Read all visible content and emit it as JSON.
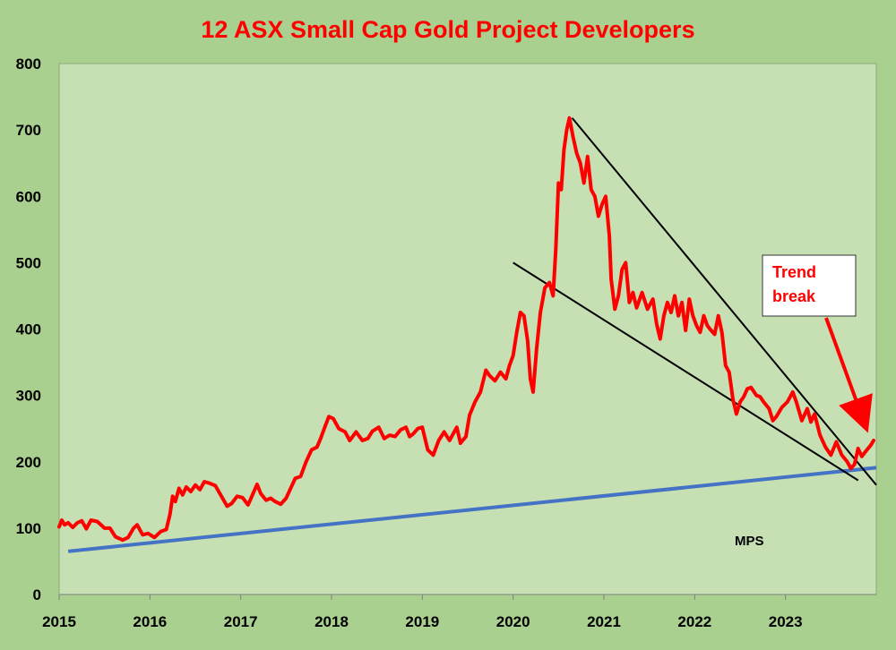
{
  "chart_data": {
    "type": "line",
    "title": "12 ASX Small Cap Gold Project Developers",
    "xlabel": "",
    "ylabel": "",
    "xlim": [
      2015.0,
      2024.0
    ],
    "ylim": [
      0,
      800
    ],
    "x_ticks": [
      "2015",
      "2016",
      "2017",
      "2018",
      "2019",
      "2020",
      "2021",
      "2022",
      "2023"
    ],
    "y_ticks": [
      "0",
      "100",
      "200",
      "300",
      "400",
      "500",
      "600",
      "700",
      "800"
    ],
    "grid": false,
    "legend": "none",
    "colors": {
      "outer_bg": "#a9d08e",
      "plot_bg": "#c6e0b4",
      "index_line": "#ff0000",
      "support_line": "#4472c4",
      "trendlines": "#000000",
      "title": "#ff0000",
      "annotation_text": "#ff0000"
    },
    "series": [
      {
        "color": "#ff0000",
        "points": [
          [
            2015.0,
            102
          ],
          [
            2015.03,
            112
          ],
          [
            2015.06,
            105
          ],
          [
            2015.1,
            108
          ],
          [
            2015.15,
            101
          ],
          [
            2015.2,
            108
          ],
          [
            2015.25,
            111
          ],
          [
            2015.3,
            99
          ],
          [
            2015.35,
            112
          ],
          [
            2015.42,
            110
          ],
          [
            2015.5,
            100
          ],
          [
            2015.56,
            100
          ],
          [
            2015.62,
            87
          ],
          [
            2015.7,
            82
          ],
          [
            2015.76,
            86
          ],
          [
            2015.82,
            100
          ],
          [
            2015.86,
            105
          ],
          [
            2015.92,
            90
          ],
          [
            2015.98,
            92
          ],
          [
            2016.05,
            86
          ],
          [
            2016.12,
            95
          ],
          [
            2016.18,
            98
          ],
          [
            2016.22,
            120
          ],
          [
            2016.25,
            148
          ],
          [
            2016.28,
            140
          ],
          [
            2016.32,
            160
          ],
          [
            2016.36,
            150
          ],
          [
            2016.4,
            162
          ],
          [
            2016.45,
            155
          ],
          [
            2016.5,
            165
          ],
          [
            2016.55,
            158
          ],
          [
            2016.6,
            170
          ],
          [
            2016.65,
            168
          ],
          [
            2016.72,
            164
          ],
          [
            2016.8,
            145
          ],
          [
            2016.85,
            133
          ],
          [
            2016.9,
            137
          ],
          [
            2016.96,
            148
          ],
          [
            2017.02,
            146
          ],
          [
            2017.08,
            135
          ],
          [
            2017.12,
            147
          ],
          [
            2017.18,
            166
          ],
          [
            2017.22,
            152
          ],
          [
            2017.28,
            142
          ],
          [
            2017.33,
            145
          ],
          [
            2017.38,
            140
          ],
          [
            2017.44,
            136
          ],
          [
            2017.5,
            145
          ],
          [
            2017.55,
            160
          ],
          [
            2017.6,
            175
          ],
          [
            2017.66,
            178
          ],
          [
            2017.72,
            200
          ],
          [
            2017.78,
            218
          ],
          [
            2017.84,
            222
          ],
          [
            2017.88,
            235
          ],
          [
            2017.92,
            250
          ],
          [
            2017.97,
            268
          ],
          [
            2018.02,
            265
          ],
          [
            2018.08,
            250
          ],
          [
            2018.15,
            245
          ],
          [
            2018.2,
            232
          ],
          [
            2018.27,
            245
          ],
          [
            2018.34,
            232
          ],
          [
            2018.4,
            235
          ],
          [
            2018.45,
            246
          ],
          [
            2018.52,
            252
          ],
          [
            2018.58,
            235
          ],
          [
            2018.64,
            240
          ],
          [
            2018.7,
            238
          ],
          [
            2018.76,
            248
          ],
          [
            2018.82,
            252
          ],
          [
            2018.86,
            238
          ],
          [
            2018.9,
            242
          ],
          [
            2018.95,
            250
          ],
          [
            2019.0,
            252
          ],
          [
            2019.06,
            218
          ],
          [
            2019.12,
            210
          ],
          [
            2019.18,
            232
          ],
          [
            2019.24,
            245
          ],
          [
            2019.3,
            232
          ],
          [
            2019.38,
            252
          ],
          [
            2019.42,
            228
          ],
          [
            2019.48,
            238
          ],
          [
            2019.52,
            270
          ],
          [
            2019.58,
            290
          ],
          [
            2019.64,
            305
          ],
          [
            2019.7,
            338
          ],
          [
            2019.74,
            330
          ],
          [
            2019.8,
            322
          ],
          [
            2019.86,
            335
          ],
          [
            2019.92,
            325
          ],
          [
            2019.96,
            345
          ],
          [
            2020.0,
            360
          ],
          [
            2020.04,
            395
          ],
          [
            2020.08,
            425
          ],
          [
            2020.12,
            420
          ],
          [
            2020.16,
            382
          ],
          [
            2020.19,
            325
          ],
          [
            2020.22,
            305
          ],
          [
            2020.26,
            372
          ],
          [
            2020.3,
            425
          ],
          [
            2020.35,
            462
          ],
          [
            2020.4,
            470
          ],
          [
            2020.44,
            450
          ],
          [
            2020.47,
            520
          ],
          [
            2020.5,
            620
          ],
          [
            2020.53,
            610
          ],
          [
            2020.56,
            670
          ],
          [
            2020.59,
            700
          ],
          [
            2020.62,
            718
          ],
          [
            2020.66,
            690
          ],
          [
            2020.7,
            665
          ],
          [
            2020.74,
            650
          ],
          [
            2020.78,
            620
          ],
          [
            2020.82,
            660
          ],
          [
            2020.86,
            610
          ],
          [
            2020.9,
            600
          ],
          [
            2020.94,
            570
          ],
          [
            2020.98,
            588
          ],
          [
            2021.02,
            600
          ],
          [
            2021.06,
            540
          ],
          [
            2021.08,
            475
          ],
          [
            2021.12,
            430
          ],
          [
            2021.16,
            450
          ],
          [
            2021.2,
            490
          ],
          [
            2021.24,
            500
          ],
          [
            2021.28,
            440
          ],
          [
            2021.32,
            455
          ],
          [
            2021.36,
            432
          ],
          [
            2021.42,
            455
          ],
          [
            2021.48,
            430
          ],
          [
            2021.54,
            445
          ],
          [
            2021.58,
            408
          ],
          [
            2021.62,
            385
          ],
          [
            2021.66,
            420
          ],
          [
            2021.7,
            440
          ],
          [
            2021.74,
            425
          ],
          [
            2021.78,
            450
          ],
          [
            2021.82,
            420
          ],
          [
            2021.86,
            440
          ],
          [
            2021.9,
            398
          ],
          [
            2021.94,
            445
          ],
          [
            2021.98,
            420
          ],
          [
            2022.02,
            405
          ],
          [
            2022.06,
            395
          ],
          [
            2022.1,
            420
          ],
          [
            2022.14,
            405
          ],
          [
            2022.18,
            398
          ],
          [
            2022.22,
            392
          ],
          [
            2022.26,
            420
          ],
          [
            2022.3,
            395
          ],
          [
            2022.34,
            345
          ],
          [
            2022.38,
            335
          ],
          [
            2022.42,
            295
          ],
          [
            2022.46,
            272
          ],
          [
            2022.5,
            290
          ],
          [
            2022.54,
            298
          ],
          [
            2022.58,
            310
          ],
          [
            2022.62,
            312
          ],
          [
            2022.68,
            300
          ],
          [
            2022.72,
            298
          ],
          [
            2022.76,
            290
          ],
          [
            2022.82,
            280
          ],
          [
            2022.86,
            262
          ],
          [
            2022.9,
            268
          ],
          [
            2022.96,
            282
          ],
          [
            2023.02,
            290
          ],
          [
            2023.08,
            305
          ],
          [
            2023.12,
            290
          ],
          [
            2023.18,
            262
          ],
          [
            2023.24,
            280
          ],
          [
            2023.28,
            260
          ],
          [
            2023.32,
            272
          ],
          [
            2023.38,
            240
          ],
          [
            2023.44,
            222
          ],
          [
            2023.5,
            210
          ],
          [
            2023.56,
            230
          ],
          [
            2023.62,
            210
          ],
          [
            2023.68,
            200
          ],
          [
            2023.72,
            190
          ],
          [
            2023.76,
            196
          ],
          [
            2023.8,
            220
          ],
          [
            2023.84,
            208
          ],
          [
            2023.88,
            215
          ],
          [
            2023.94,
            225
          ],
          [
            2023.97,
            232
          ]
        ]
      }
    ],
    "trendlines": [
      {
        "color": "#4472c4",
        "x": [
          2015.1,
          2024.0
        ],
        "y": [
          65,
          191
        ]
      },
      {
        "color": "#000000",
        "x": [
          2020.0,
          2023.8
        ],
        "y": [
          500,
          172
        ]
      },
      {
        "color": "#000000",
        "x": [
          2020.65,
          2024.0
        ],
        "y": [
          718,
          165
        ]
      }
    ],
    "annotations": {
      "trend_break_line1": "Trend",
      "trend_break_line2": "break",
      "mps_label": "MPS"
    }
  }
}
